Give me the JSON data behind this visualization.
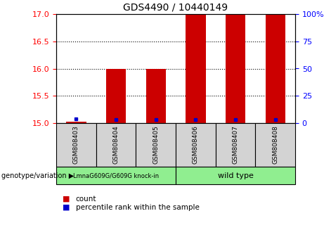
{
  "title": "GDS4490 / 10440149",
  "samples": [
    "GSM808403",
    "GSM808404",
    "GSM808405",
    "GSM808406",
    "GSM808407",
    "GSM808408"
  ],
  "red_bar_tops": [
    15.03,
    16.0,
    16.0,
    17.0,
    17.0,
    17.0
  ],
  "blue_square_y": [
    15.08,
    15.06,
    15.07,
    15.07,
    15.07,
    15.07
  ],
  "y_min": 15.0,
  "y_max": 17.0,
  "y_left_ticks": [
    15,
    15.5,
    16,
    16.5,
    17
  ],
  "y_right_ticks": [
    0,
    25,
    50,
    75,
    100
  ],
  "group1_label": "LmnaG609G/G609G knock-in",
  "group2_label": "wild type",
  "group_label_prefix": "genotype/variation",
  "group1_color": "#90ee90",
  "group2_color": "#90ee90",
  "bar_color": "#cc0000",
  "blue_color": "#0000cc",
  "bar_width": 0.5,
  "sample_box_color": "#d3d3d3",
  "legend_count_label": "count",
  "legend_pct_label": "percentile rank within the sample",
  "background_color": "#ffffff"
}
